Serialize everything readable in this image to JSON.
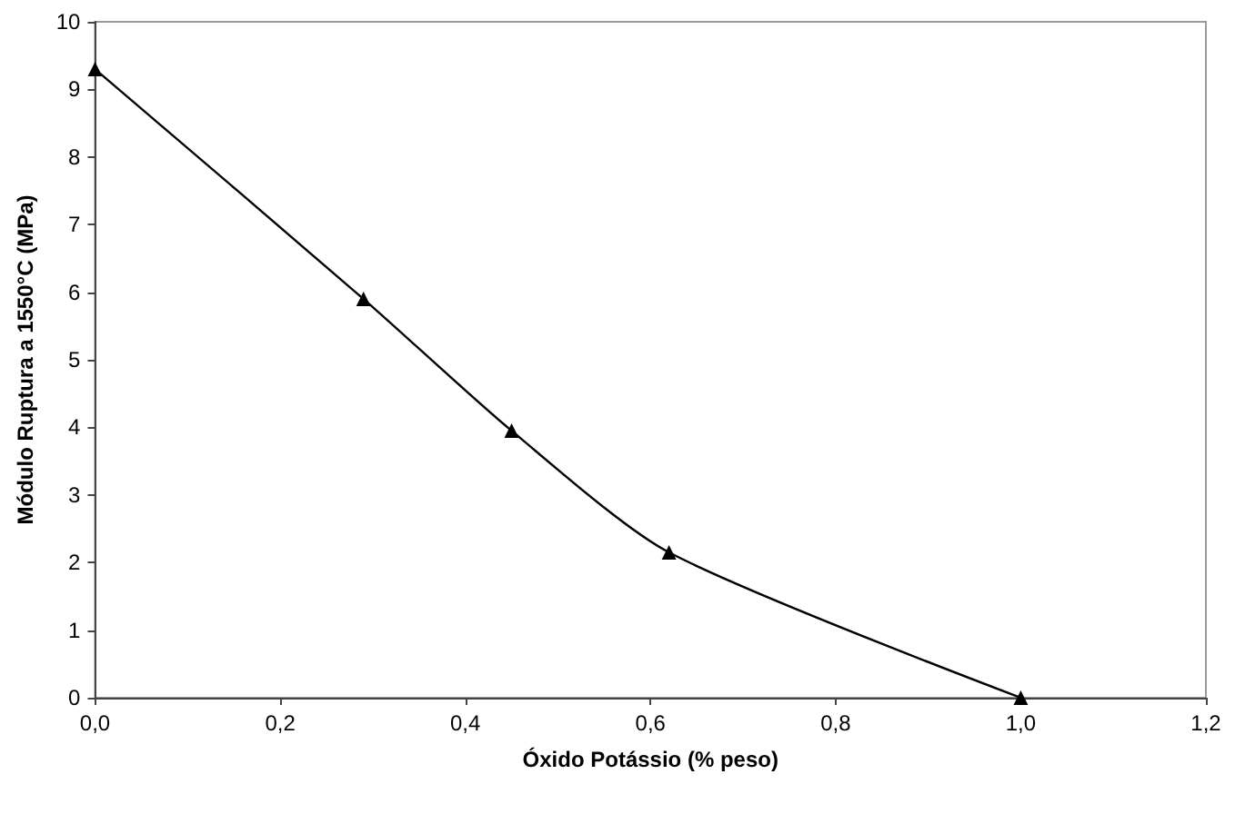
{
  "chart_data": {
    "type": "line",
    "xlabel": "Óxido Potássio (% peso)",
    "ylabel": "Módulo Ruptura a 1550°C (MPa)",
    "x": [
      0.0,
      0.29,
      0.45,
      0.62,
      1.0
    ],
    "series": [
      {
        "color": "#000000",
        "values": [
          9.3,
          5.9,
          3.95,
          2.15,
          0.0
        ]
      }
    ],
    "xlim": [
      0,
      1.2
    ],
    "xticks": [
      {
        "value": 0,
        "label": "0,0"
      },
      {
        "value": 0.2,
        "label": "0,2"
      },
      {
        "value": 0.4,
        "label": "0,4"
      },
      {
        "value": 0.6,
        "label": "0,6"
      },
      {
        "value": 0.8,
        "label": "0,8"
      },
      {
        "value": 1.0,
        "label": "1,0"
      },
      {
        "value": 1.2,
        "label": "1,2"
      }
    ],
    "ylim": [
      0,
      10
    ],
    "yticks": [
      0,
      1,
      2,
      3,
      4,
      5,
      6,
      7,
      8,
      9,
      10
    ],
    "grid": false,
    "marker": "triangle",
    "line_style": "solid"
  }
}
